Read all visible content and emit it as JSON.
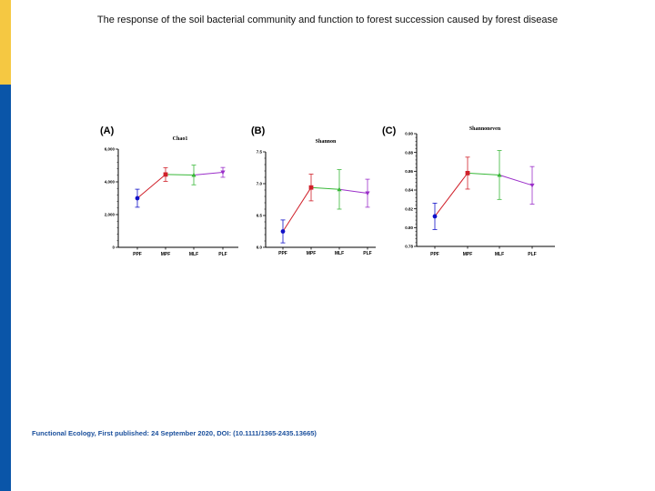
{
  "slide": {
    "title": "The response of the soil bacterial community and function to forest succession caused by forest disease",
    "caption": "Functional Ecology, First published: 24 September 2020, DOI: (10.1111/1365-2435.13665)"
  },
  "colors": {
    "accent_yellow": "#f5c842",
    "accent_blue": "#0a55a8",
    "caption": "#1a4f9c"
  },
  "chart_data": [
    {
      "type": "line",
      "panel": "(A)",
      "title": "Chao1",
      "categories": [
        "PPF",
        "MPF",
        "MLF",
        "PLF"
      ],
      "values": [
        3000,
        4450,
        4420,
        4580
      ],
      "error": [
        550,
        420,
        600,
        300
      ],
      "ylim": [
        0,
        6000
      ],
      "yticks": [
        0,
        2000,
        4000,
        6000
      ],
      "ytick_labels": [
        "0",
        "2,000",
        "4,000",
        "6,000"
      ],
      "point_colors": [
        "#1010c8",
        "#d0202a",
        "#38b838",
        "#9b2fc9"
      ]
    },
    {
      "type": "line",
      "panel": "(B)",
      "title": "Shannon",
      "categories": [
        "PPF",
        "MPF",
        "MLF",
        "PLF"
      ],
      "values": [
        6.25,
        6.94,
        6.91,
        6.85
      ],
      "error": [
        0.18,
        0.21,
        0.31,
        0.22
      ],
      "ylim": [
        6.0,
        7.5
      ],
      "yticks": [
        6.0,
        6.5,
        7.0,
        7.5
      ],
      "ytick_labels": [
        "6.0",
        "6.5",
        "7.0",
        "7.5"
      ],
      "point_colors": [
        "#1010c8",
        "#d0202a",
        "#38b838",
        "#9b2fc9"
      ]
    },
    {
      "type": "line",
      "panel": "(C)",
      "title": "Shannoneven",
      "categories": [
        "PPF",
        "MPF",
        "MLF",
        "PLF"
      ],
      "values": [
        0.812,
        0.858,
        0.856,
        0.845
      ],
      "error": [
        0.014,
        0.017,
        0.026,
        0.02
      ],
      "ylim": [
        0.78,
        0.9
      ],
      "yticks": [
        0.78,
        0.8,
        0.82,
        0.84,
        0.86,
        0.88,
        0.9
      ],
      "ytick_labels": [
        "0.78",
        "0.80",
        "0.82",
        "0.84",
        "0.86",
        "0.88",
        "0.90"
      ],
      "point_colors": [
        "#1010c8",
        "#d0202a",
        "#38b838",
        "#9b2fc9"
      ]
    }
  ]
}
